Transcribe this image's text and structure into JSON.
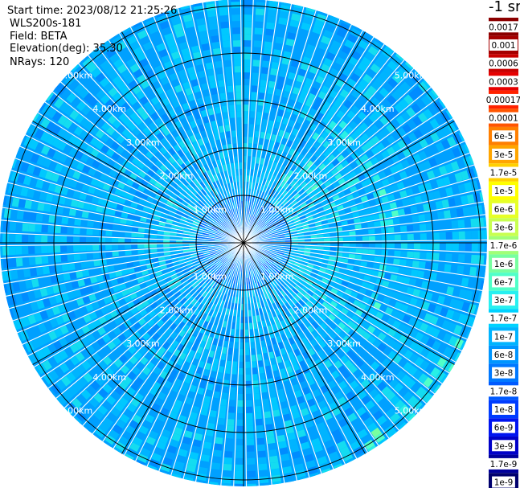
{
  "header": {
    "start_time": "Start time: 2023/08/12 21:25:26",
    "instrument": "WLS200s-181",
    "field": "Field: BETA",
    "elevation": "Elevation(deg): 35.30",
    "nrays": "NRays: 120"
  },
  "chart_data": {
    "type": "polar-ppi-heatmap",
    "field": "BETA",
    "unit_label": "-1 sr",
    "range_rings_km": [
      1.0,
      2.0,
      3.0,
      4.0,
      5.0
    ],
    "ring_labels": [
      "1.00km",
      "2.00km",
      "3.00km",
      "4.00km",
      "5.00km"
    ],
    "max_range_km": 6.0,
    "nrays": 120,
    "elevation_deg": 35.3,
    "colorbar": {
      "ticks": [
        "0.0017",
        "0.001",
        "0.0006",
        "0.0003",
        "0.00017",
        "0.0001",
        "6e-5",
        "3e-5",
        "1.7e-5",
        "1e-5",
        "6e-6",
        "3e-6",
        "1.7e-6",
        "1e-6",
        "6e-7",
        "3e-7",
        "1.7e-7",
        "1e-7",
        "6e-8",
        "3e-8",
        "1.7e-8",
        "1e-8",
        "6e-9",
        "3e-9",
        "1.7e-9",
        "1e-9"
      ],
      "colors": [
        "#8b0000",
        "#a50000",
        "#c80000",
        "#e60000",
        "#ff2200",
        "#ff5500",
        "#ff7f00",
        "#ffa500",
        "#ffd000",
        "#ffff00",
        "#e6ff28",
        "#c8ff50",
        "#a0ff78",
        "#78ffa0",
        "#50ffc8",
        "#28f0f0",
        "#00d2ff",
        "#00b4ff",
        "#0096ff",
        "#0078ff",
        "#005aff",
        "#003cff",
        "#0014f0",
        "#0000c8",
        "#00009b",
        "#00006e"
      ]
    }
  }
}
